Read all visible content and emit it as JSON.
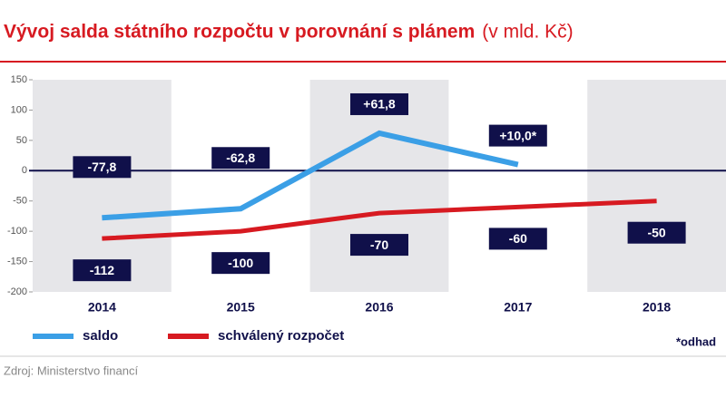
{
  "chart_data": {
    "type": "line",
    "title": "Vývoj salda státního rozpočtu v porovnání s plánem",
    "subtitle": "(v mld. Kč)",
    "categories": [
      "2014",
      "2015",
      "2016",
      "2017",
      "2018"
    ],
    "series": [
      {
        "name": "saldo",
        "color": "#3b9fe6",
        "values": [
          -77.8,
          -62.8,
          61.8,
          10.0,
          null
        ],
        "value_labels": [
          "-77,8",
          "-62,8",
          "+61,8",
          "+10,0*",
          null
        ]
      },
      {
        "name": "schválený rozpočet",
        "color": "#d71a21",
        "values": [
          -112,
          -100,
          -70,
          -60,
          -50
        ]
      }
    ],
    "ylim": [
      -200,
      150
    ],
    "yticks": [
      -200,
      -150,
      -100,
      -50,
      0,
      50,
      100,
      150
    ],
    "note": "*odhad",
    "source": "Zdroj: Ministerstvo financí"
  }
}
